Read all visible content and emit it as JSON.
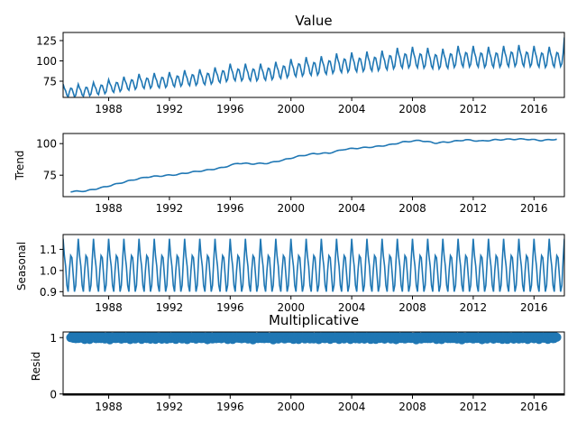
{
  "chart_data": [
    {
      "type": "line",
      "title": "Value",
      "ylabel": "",
      "xlim": [
        1985.0,
        2018.0
      ],
      "ylim": [
        55,
        135
      ],
      "x_ticks": [
        1988,
        1992,
        1996,
        2000,
        2004,
        2008,
        2012,
        2016
      ],
      "y_ticks": [
        75,
        100,
        125
      ],
      "series": [
        {
          "color": "#1f77b4",
          "start_year": 1985,
          "frequency": "monthly",
          "trend_anchors": [
            [
              1985,
              62
            ],
            [
              1986,
              62
            ],
            [
              1987,
              64
            ],
            [
              1988,
              67
            ],
            [
              1989,
              70
            ],
            [
              1990,
              73
            ],
            [
              1991,
              74
            ],
            [
              1992,
              75
            ],
            [
              1993,
              77
            ],
            [
              1994,
              78
            ],
            [
              1995,
              80
            ],
            [
              1996,
              84
            ],
            [
              1997,
              84
            ],
            [
              1998,
              84
            ],
            [
              1999,
              86
            ],
            [
              2000,
              89
            ],
            [
              2001,
              91
            ],
            [
              2002,
              92
            ],
            [
              2003,
              95
            ],
            [
              2004,
              96
            ],
            [
              2005,
              97
            ],
            [
              2006,
              98
            ],
            [
              2007,
              101
            ],
            [
              2008,
              102
            ],
            [
              2009,
              101
            ],
            [
              2010,
              100
            ],
            [
              2011,
              103
            ],
            [
              2012,
              103
            ],
            [
              2013,
              102
            ],
            [
              2014,
              103
            ],
            [
              2015,
              104
            ],
            [
              2016,
              103
            ],
            [
              2017,
              102
            ],
            [
              2018,
              104
            ]
          ],
          "seasonal_factors": [
            1.15,
            1.07,
            1.02,
            0.93,
            0.9,
            1.0,
            1.07,
            1.06,
            0.98,
            0.9,
            0.93,
            1.05
          ],
          "final_value": 129
        }
      ]
    },
    {
      "type": "line",
      "title": "",
      "ylabel": "Trend",
      "xlim": [
        1985.0,
        2018.0
      ],
      "ylim": [
        58,
        108
      ],
      "x_ticks": [
        1988,
        1992,
        1996,
        2000,
        2004,
        2008,
        2012,
        2016
      ],
      "y_ticks": [
        75,
        100
      ],
      "series": [
        {
          "color": "#1f77b4",
          "start": 1985.5,
          "end": 2017.5,
          "anchors": [
            [
              1985.5,
              62
            ],
            [
              1986.5,
              62.5
            ],
            [
              1987.5,
              65
            ],
            [
              1988.5,
              68
            ],
            [
              1989.5,
              71
            ],
            [
              1990.5,
              73.5
            ],
            [
              1991.5,
              74.5
            ],
            [
              1992.5,
              75.5
            ],
            [
              1993.5,
              77.5
            ],
            [
              1994.5,
              79
            ],
            [
              1995.5,
              81
            ],
            [
              1996.5,
              84.5
            ],
            [
              1997.5,
              84
            ],
            [
              1998.5,
              84.5
            ],
            [
              1999.5,
              87
            ],
            [
              2000.5,
              90
            ],
            [
              2001.5,
              92
            ],
            [
              2002.5,
              92.5
            ],
            [
              2003.5,
              95.5
            ],
            [
              2004.5,
              96.5
            ],
            [
              2005.5,
              97.5
            ],
            [
              2006.5,
              99
            ],
            [
              2007.5,
              101.5
            ],
            [
              2008.5,
              102.5
            ],
            [
              2009.5,
              100.5
            ],
            [
              2010.5,
              101.5
            ],
            [
              2011.5,
              103
            ],
            [
              2012.5,
              102
            ],
            [
              2013.5,
              103
            ],
            [
              2014.5,
              103.5
            ],
            [
              2015.5,
              103.5
            ],
            [
              2016.5,
              102.5
            ],
            [
              2017.5,
              103.5
            ]
          ]
        }
      ]
    },
    {
      "type": "line",
      "title": "",
      "ylabel": "Seasonal",
      "xlim": [
        1985.0,
        2018.0
      ],
      "ylim": [
        0.88,
        1.17
      ],
      "x_ticks": [
        1988,
        1992,
        1996,
        2000,
        2004,
        2008,
        2012,
        2016
      ],
      "y_ticks": [
        0.9,
        1.0,
        1.1
      ],
      "y_tick_labels": [
        "0.9",
        "1.0",
        "1.1"
      ],
      "series": [
        {
          "color": "#1f77b4",
          "seasonal_factors": [
            1.15,
            1.07,
            1.02,
            0.93,
            0.9,
            1.0,
            1.07,
            1.06,
            0.98,
            0.9,
            0.93,
            1.05
          ]
        }
      ]
    },
    {
      "type": "scatter",
      "title": "Multiplicative",
      "ylabel": "Resid",
      "xlim": [
        1985.0,
        2018.0
      ],
      "ylim": [
        -0.02,
        1.1
      ],
      "x_ticks": [
        1988,
        1992,
        1996,
        2000,
        2004,
        2008,
        2012,
        2016
      ],
      "y_ticks": [
        0,
        1
      ],
      "baseline": 0,
      "series": [
        {
          "color": "#1f77b4",
          "start": 1985.5,
          "end": 2017.5,
          "center": 1.0,
          "spread": 0.04
        }
      ]
    }
  ]
}
